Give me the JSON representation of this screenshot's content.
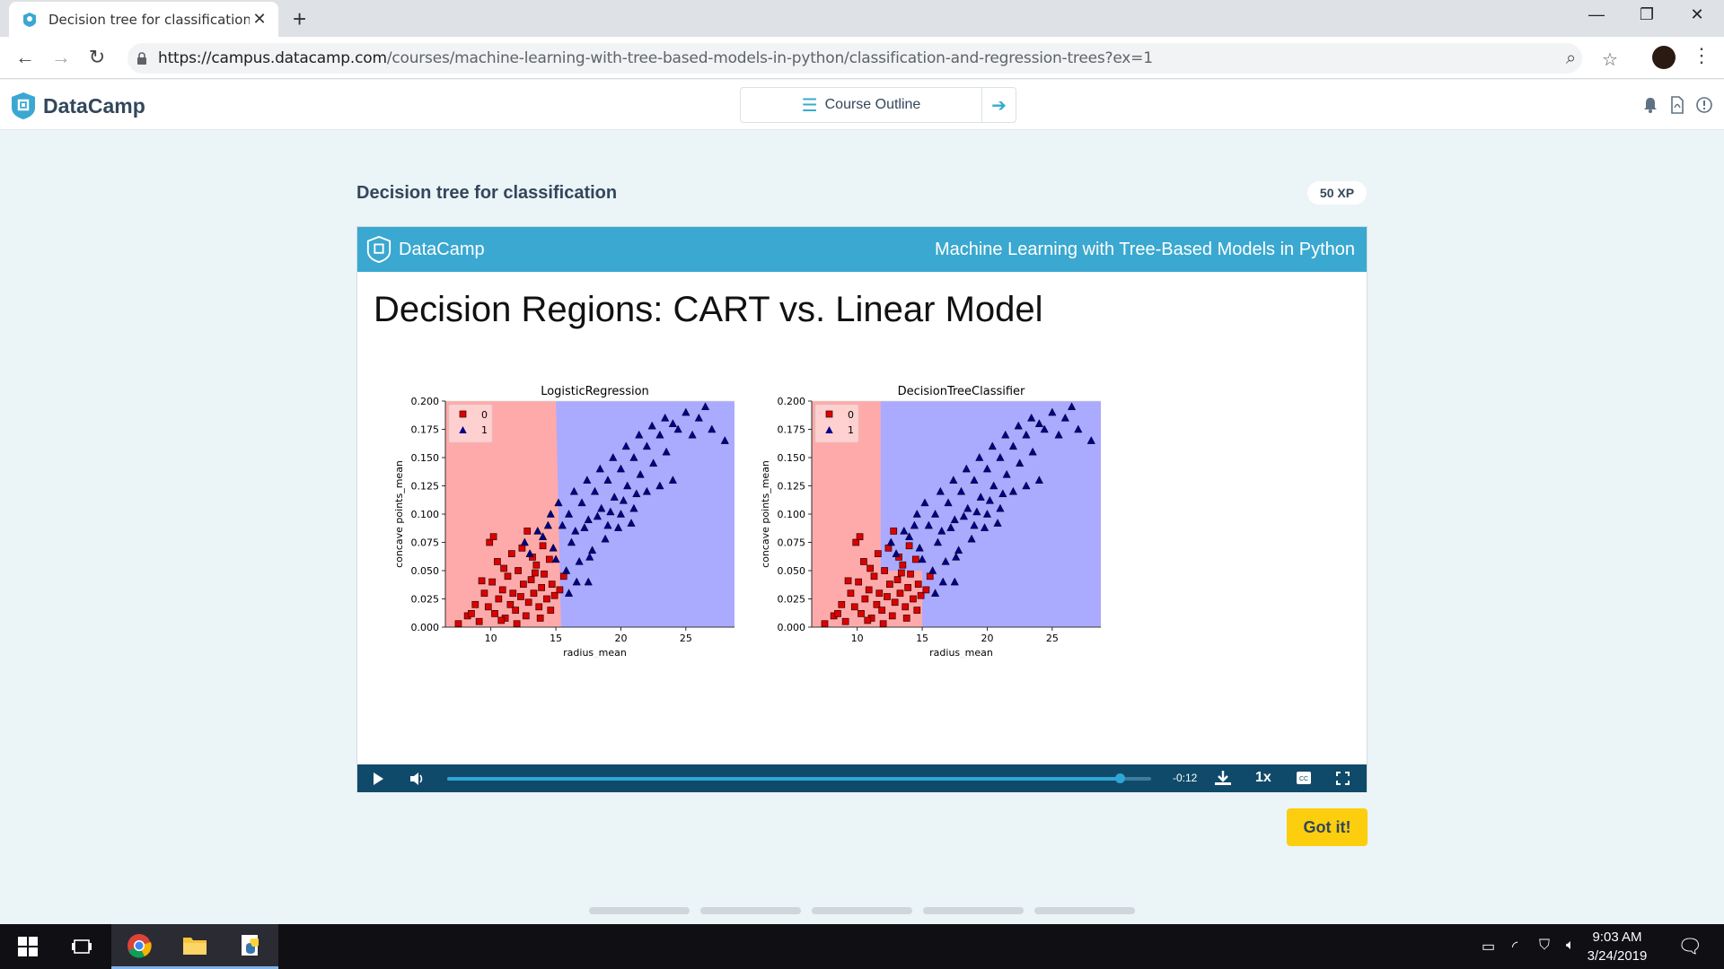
{
  "browser": {
    "tab_title": "Decision tree for classification | P",
    "url_host": "https://campus.datacamp.com",
    "url_path": "/courses/machine-learning-with-tree-based-models-in-python/classification-and-regression-trees?ex=1"
  },
  "header": {
    "brand": "DataCamp",
    "course_outline": "Course Outline"
  },
  "exercise": {
    "title": "Decision tree for classification",
    "xp": "50 XP",
    "got_it": "Got it!"
  },
  "slide": {
    "brand": "DataCamp",
    "course": "Machine Learning with Tree-Based Models in Python",
    "title": "Decision Regions: CART vs. Linear Model"
  },
  "player": {
    "time": "-0:12",
    "speed": "1x",
    "progress": 0.955
  },
  "taskbar": {
    "time": "9:03 AM",
    "date": "3/24/2019"
  },
  "colors": {
    "accent": "#3aa8d0",
    "player_bar": "#104a6a",
    "got_it": "#fcce0d",
    "region_0": "#ffaaaa",
    "region_1": "#aaaaff",
    "class_0": "#dd0000",
    "class_1": "#00008b"
  },
  "chart_data": [
    {
      "type": "scatter",
      "title": "LogisticRegression",
      "xlabel": "radius_mean",
      "ylabel": "concave points_mean",
      "xlim": [
        6.5,
        29.5
      ],
      "ylim": [
        0,
        0.2
      ],
      "xticks": [
        10,
        15,
        20,
        25
      ],
      "yticks": [
        "0.000",
        "0.025",
        "0.050",
        "0.075",
        "0.100",
        "0.125",
        "0.150",
        "0.175",
        "0.200"
      ],
      "legend": [
        "0",
        "1"
      ],
      "legend_position": "top-left",
      "decision_boundary": {
        "kind": "linear",
        "x_at_ymin": 15.4,
        "x_at_ymax": 15.0
      },
      "series": [
        {
          "name": "0",
          "marker": "square",
          "points": [
            [
              7.5,
              0.003
            ],
            [
              8.2,
              0.01
            ],
            [
              8.8,
              0.02
            ],
            [
              9.1,
              0.005
            ],
            [
              9.5,
              0.03
            ],
            [
              9.8,
              0.018
            ],
            [
              10.1,
              0.04
            ],
            [
              10.3,
              0.012
            ],
            [
              10.6,
              0.025
            ],
            [
              10.9,
              0.033
            ],
            [
              11.1,
              0.008
            ],
            [
              11.3,
              0.045
            ],
            [
              11.5,
              0.02
            ],
            [
              11.7,
              0.03
            ],
            [
              11.9,
              0.015
            ],
            [
              12.1,
              0.05
            ],
            [
              12.3,
              0.027
            ],
            [
              12.5,
              0.038
            ],
            [
              12.7,
              0.01
            ],
            [
              12.9,
              0.022
            ],
            [
              13.1,
              0.042
            ],
            [
              13.3,
              0.03
            ],
            [
              13.5,
              0.055
            ],
            [
              13.7,
              0.018
            ],
            [
              13.9,
              0.035
            ],
            [
              14.1,
              0.047
            ],
            [
              14.3,
              0.025
            ],
            [
              14.5,
              0.06
            ],
            [
              14.7,
              0.038
            ],
            [
              14.9,
              0.028
            ],
            [
              10.5,
              0.058
            ],
            [
              11.6,
              0.065
            ],
            [
              12.4,
              0.07
            ],
            [
              13.2,
              0.062
            ],
            [
              14.0,
              0.072
            ],
            [
              9.9,
              0.075
            ],
            [
              10.2,
              0.08
            ],
            [
              12.8,
              0.085
            ],
            [
              11.0,
              0.052
            ],
            [
              9.3,
              0.041
            ],
            [
              8.5,
              0.012
            ],
            [
              12.0,
              0.003
            ],
            [
              13.8,
              0.008
            ],
            [
              14.6,
              0.015
            ],
            [
              10.8,
              0.006
            ],
            [
              15.3,
              0.033
            ],
            [
              15.6,
              0.045
            ],
            [
              13.4,
              0.048
            ]
          ]
        },
        {
          "name": "1",
          "marker": "triangle",
          "points": [
            [
              13.0,
              0.065
            ],
            [
              14.0,
              0.08
            ],
            [
              14.8,
              0.07
            ],
            [
              15.5,
              0.09
            ],
            [
              16.0,
              0.1
            ],
            [
              16.5,
              0.085
            ],
            [
              17.0,
              0.11
            ],
            [
              17.5,
              0.095
            ],
            [
              18.0,
              0.12
            ],
            [
              18.5,
              0.105
            ],
            [
              19.0,
              0.13
            ],
            [
              19.5,
              0.115
            ],
            [
              20.0,
              0.14
            ],
            [
              20.5,
              0.125
            ],
            [
              21.0,
              0.15
            ],
            [
              21.5,
              0.135
            ],
            [
              22.0,
              0.16
            ],
            [
              22.5,
              0.145
            ],
            [
              23.0,
              0.17
            ],
            [
              23.5,
              0.155
            ],
            [
              24.0,
              0.18
            ],
            [
              25.0,
              0.19
            ],
            [
              26.0,
              0.185
            ],
            [
              27.0,
              0.175
            ],
            [
              28.0,
              0.165
            ],
            [
              15.0,
              0.06
            ],
            [
              16.2,
              0.075
            ],
            [
              17.2,
              0.088
            ],
            [
              18.2,
              0.098
            ],
            [
              19.2,
              0.102
            ],
            [
              20.2,
              0.112
            ],
            [
              21.2,
              0.118
            ],
            [
              16.8,
              0.058
            ],
            [
              17.8,
              0.068
            ],
            [
              18.8,
              0.078
            ],
            [
              19.8,
              0.088
            ],
            [
              20.8,
              0.092
            ],
            [
              15.8,
              0.05
            ],
            [
              16.6,
              0.04
            ],
            [
              17.6,
              0.062
            ],
            [
              14.4,
              0.09
            ],
            [
              15.2,
              0.11
            ],
            [
              16.4,
              0.12
            ],
            [
              17.4,
              0.13
            ],
            [
              18.4,
              0.14
            ],
            [
              19.4,
              0.15
            ],
            [
              20.4,
              0.16
            ],
            [
              21.4,
              0.17
            ],
            [
              22.4,
              0.178
            ],
            [
              23.4,
              0.185
            ],
            [
              24.4,
              0.175
            ],
            [
              19.0,
              0.09
            ],
            [
              20.0,
              0.1
            ],
            [
              21.0,
              0.105
            ],
            [
              22.0,
              0.12
            ],
            [
              23.0,
              0.125
            ],
            [
              24.0,
              0.13
            ],
            [
              25.5,
              0.17
            ],
            [
              26.5,
              0.195
            ],
            [
              12.6,
              0.075
            ],
            [
              13.6,
              0.085
            ],
            [
              14.6,
              0.1
            ],
            [
              16.0,
              0.03
            ],
            [
              17.5,
              0.04
            ]
          ]
        }
      ]
    },
    {
      "type": "scatter",
      "title": "DecisionTreeClassifier",
      "xlabel": "radius_mean",
      "ylabel": "concave points_mean",
      "xlim": [
        6.5,
        29.5
      ],
      "ylim": [
        0,
        0.2
      ],
      "xticks": [
        10,
        15,
        20,
        25
      ],
      "yticks": [
        "0.000",
        "0.025",
        "0.050",
        "0.075",
        "0.100",
        "0.125",
        "0.150",
        "0.175",
        "0.200"
      ],
      "legend": [
        "0",
        "1"
      ],
      "legend_position": "top-left",
      "decision_boundary": {
        "kind": "axis-aligned",
        "x_split": 11.8,
        "y_split": 0.05,
        "x_split_lower": 15.0
      },
      "series": [
        {
          "name": "0",
          "marker": "square",
          "points": [
            [
              7.5,
              0.003
            ],
            [
              8.2,
              0.01
            ],
            [
              8.8,
              0.02
            ],
            [
              9.1,
              0.005
            ],
            [
              9.5,
              0.03
            ],
            [
              9.8,
              0.018
            ],
            [
              10.1,
              0.04
            ],
            [
              10.3,
              0.012
            ],
            [
              10.6,
              0.025
            ],
            [
              10.9,
              0.033
            ],
            [
              11.1,
              0.008
            ],
            [
              11.3,
              0.045
            ],
            [
              11.5,
              0.02
            ],
            [
              11.7,
              0.03
            ],
            [
              11.9,
              0.015
            ],
            [
              12.1,
              0.05
            ],
            [
              12.3,
              0.027
            ],
            [
              12.5,
              0.038
            ],
            [
              12.7,
              0.01
            ],
            [
              12.9,
              0.022
            ],
            [
              13.1,
              0.042
            ],
            [
              13.3,
              0.03
            ],
            [
              13.5,
              0.055
            ],
            [
              13.7,
              0.018
            ],
            [
              13.9,
              0.035
            ],
            [
              14.1,
              0.047
            ],
            [
              14.3,
              0.025
            ],
            [
              14.5,
              0.06
            ],
            [
              14.7,
              0.038
            ],
            [
              14.9,
              0.028
            ],
            [
              10.5,
              0.058
            ],
            [
              11.6,
              0.065
            ],
            [
              12.4,
              0.07
            ],
            [
              13.2,
              0.062
            ],
            [
              14.0,
              0.072
            ],
            [
              9.9,
              0.075
            ],
            [
              10.2,
              0.08
            ],
            [
              12.8,
              0.085
            ],
            [
              11.0,
              0.052
            ],
            [
              9.3,
              0.041
            ],
            [
              8.5,
              0.012
            ],
            [
              12.0,
              0.003
            ],
            [
              13.8,
              0.008
            ],
            [
              14.6,
              0.015
            ],
            [
              10.8,
              0.006
            ],
            [
              15.3,
              0.033
            ],
            [
              15.6,
              0.045
            ],
            [
              13.4,
              0.048
            ]
          ]
        },
        {
          "name": "1",
          "marker": "triangle",
          "points": [
            [
              13.0,
              0.065
            ],
            [
              14.0,
              0.08
            ],
            [
              14.8,
              0.07
            ],
            [
              15.5,
              0.09
            ],
            [
              16.0,
              0.1
            ],
            [
              16.5,
              0.085
            ],
            [
              17.0,
              0.11
            ],
            [
              17.5,
              0.095
            ],
            [
              18.0,
              0.12
            ],
            [
              18.5,
              0.105
            ],
            [
              19.0,
              0.13
            ],
            [
              19.5,
              0.115
            ],
            [
              20.0,
              0.14
            ],
            [
              20.5,
              0.125
            ],
            [
              21.0,
              0.15
            ],
            [
              21.5,
              0.135
            ],
            [
              22.0,
              0.16
            ],
            [
              22.5,
              0.145
            ],
            [
              23.0,
              0.17
            ],
            [
              23.5,
              0.155
            ],
            [
              24.0,
              0.18
            ],
            [
              25.0,
              0.19
            ],
            [
              26.0,
              0.185
            ],
            [
              27.0,
              0.175
            ],
            [
              28.0,
              0.165
            ],
            [
              15.0,
              0.06
            ],
            [
              16.2,
              0.075
            ],
            [
              17.2,
              0.088
            ],
            [
              18.2,
              0.098
            ],
            [
              19.2,
              0.102
            ],
            [
              20.2,
              0.112
            ],
            [
              21.2,
              0.118
            ],
            [
              16.8,
              0.058
            ],
            [
              17.8,
              0.068
            ],
            [
              18.8,
              0.078
            ],
            [
              19.8,
              0.088
            ],
            [
              20.8,
              0.092
            ],
            [
              15.8,
              0.05
            ],
            [
              16.6,
              0.04
            ],
            [
              17.6,
              0.062
            ],
            [
              14.4,
              0.09
            ],
            [
              15.2,
              0.11
            ],
            [
              16.4,
              0.12
            ],
            [
              17.4,
              0.13
            ],
            [
              18.4,
              0.14
            ],
            [
              19.4,
              0.15
            ],
            [
              20.4,
              0.16
            ],
            [
              21.4,
              0.17
            ],
            [
              22.4,
              0.178
            ],
            [
              23.4,
              0.185
            ],
            [
              24.4,
              0.175
            ],
            [
              19.0,
              0.09
            ],
            [
              20.0,
              0.1
            ],
            [
              21.0,
              0.105
            ],
            [
              22.0,
              0.12
            ],
            [
              23.0,
              0.125
            ],
            [
              24.0,
              0.13
            ],
            [
              25.5,
              0.17
            ],
            [
              26.5,
              0.195
            ],
            [
              12.6,
              0.075
            ],
            [
              13.6,
              0.085
            ],
            [
              14.6,
              0.1
            ],
            [
              16.0,
              0.03
            ],
            [
              17.5,
              0.04
            ]
          ]
        }
      ]
    }
  ]
}
